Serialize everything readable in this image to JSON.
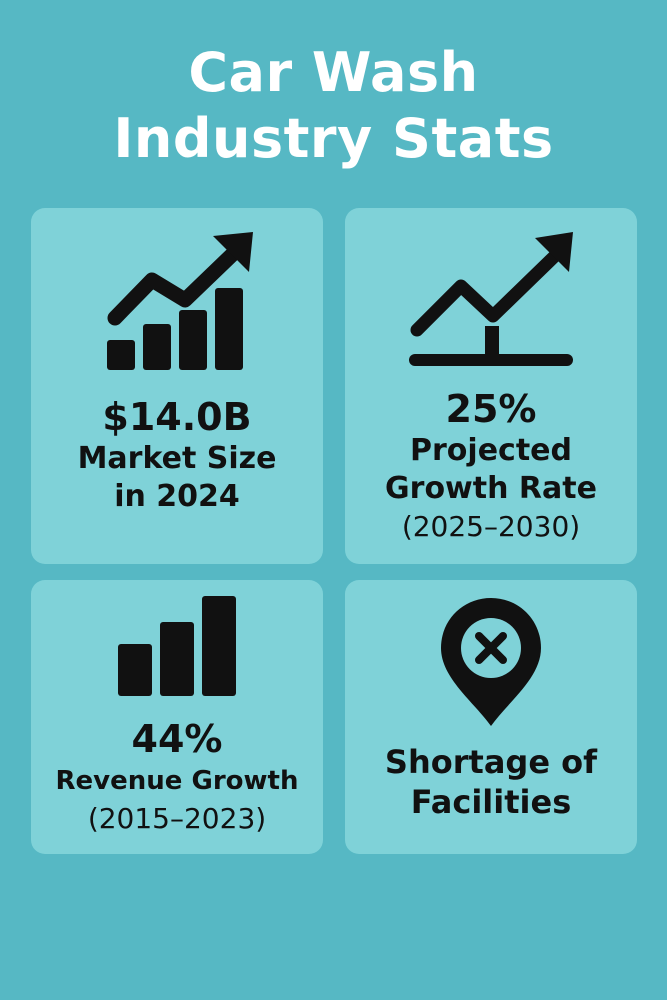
{
  "title": {
    "line1": "Car Wash",
    "line2": "Industry Stats"
  },
  "cards": [
    {
      "icon": "growth-bars-arrow-icon",
      "value": "$14.0B",
      "line1": "Market Size",
      "line2": "in 2024"
    },
    {
      "icon": "trend-line-arrow-icon",
      "value": "25%",
      "line1": "Projected",
      "line2": "Growth Rate",
      "line3": "(2025–2030)"
    },
    {
      "icon": "bar-chart-icon",
      "value": "44%",
      "line1": "Revenue Growth",
      "line2": "(2015–2023)"
    },
    {
      "icon": "location-pin-x-icon",
      "line1": "Shortage of",
      "line2": "Facilities"
    }
  ],
  "colors": {
    "background": "#56b8c4",
    "card": "#7fd2d8",
    "text": "#111111",
    "title": "#ffffff"
  }
}
